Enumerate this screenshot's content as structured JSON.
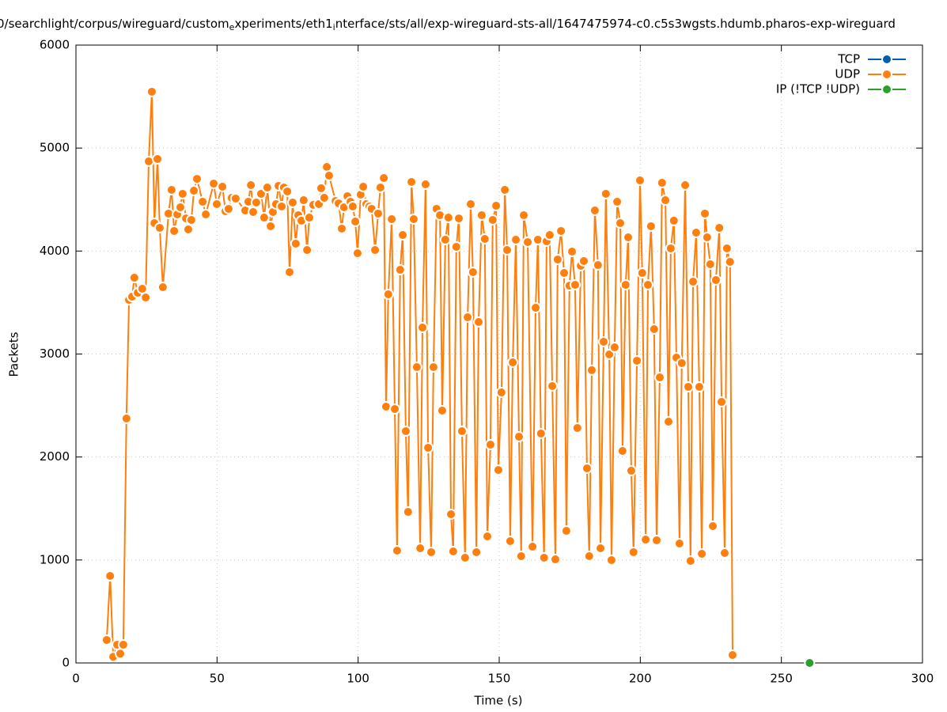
{
  "chart_data": {
    "type": "line",
    "title": [
      "0/searchlight/corpus/wireguard/custom",
      "e",
      "xperiments/eth1",
      "i",
      "nterface/sts/all/exp-wireguard-sts-all/1647475974-c0.c5s3wgsts.hdumb.pharos-exp-wireguard"
    ],
    "x_label": "Time (s)",
    "y_label": "Packets",
    "xlim": [
      0,
      300
    ],
    "xticks": [
      0,
      50,
      100,
      150,
      200,
      250,
      300
    ],
    "ylim": [
      0,
      6000
    ],
    "yticks": [
      0,
      1000,
      2000,
      3000,
      4000,
      5000,
      6000
    ],
    "grid": true,
    "legend": "top-right",
    "series": [
      {
        "name": "TCP",
        "color": "#0060ad",
        "x": [],
        "values": []
      },
      {
        "name": "UDP",
        "color": "#ff7f0e",
        "x": [
          10.9,
          12.1,
          13.2,
          14.6,
          15.7,
          16.8,
          17.9,
          18.8,
          19.9,
          20.7,
          21.9,
          23.5,
          24.7,
          25.8,
          26.9,
          27.8,
          28.9,
          29.7,
          30.8,
          32.8,
          33.9,
          34.8,
          35.9,
          37.0,
          37.8,
          39.0,
          39.8,
          40.9,
          41.8,
          42.9,
          44.9,
          46.0,
          48.8,
          49.9,
          51.9,
          53.0,
          54.1,
          55.2,
          56.6,
          60.0,
          61.1,
          62.0,
          62.8,
          63.9,
          65.6,
          66.7,
          67.8,
          69.0,
          69.8,
          70.9,
          71.8,
          72.9,
          73.7,
          74.9,
          75.7,
          76.8,
          77.9,
          78.8,
          79.9,
          80.7,
          81.9,
          82.7,
          84.1,
          86.1,
          86.9,
          88.0,
          88.9,
          89.7,
          92.0,
          93.1,
          94.2,
          95.0,
          96.2,
          97.3,
          98.1,
          99.0,
          99.8,
          100.9,
          101.8,
          102.9,
          104.0,
          104.8,
          106.0,
          107.1,
          107.9,
          109.1,
          109.9,
          110.7,
          111.9,
          113.0,
          113.8,
          114.9,
          115.8,
          116.9,
          117.7,
          118.9,
          119.7,
          120.8,
          122.0,
          122.8,
          123.9,
          124.8,
          125.9,
          126.7,
          127.8,
          129.0,
          129.8,
          130.9,
          132.0,
          132.9,
          133.7,
          134.8,
          135.7,
          136.8,
          137.9,
          138.8,
          139.9,
          140.7,
          141.9,
          142.7,
          143.8,
          144.9,
          145.8,
          146.9,
          147.7,
          148.9,
          149.7,
          150.8,
          152.0,
          152.8,
          153.9,
          154.8,
          155.9,
          157.0,
          157.8,
          158.7,
          160.1,
          161.8,
          162.9,
          163.7,
          164.8,
          165.9,
          166.8,
          167.9,
          168.8,
          169.9,
          170.7,
          171.9,
          173.0,
          173.8,
          174.9,
          175.8,
          176.9,
          177.7,
          178.9,
          180.0,
          181.1,
          181.9,
          182.8,
          183.9,
          185.0,
          185.9,
          187.0,
          187.8,
          189.0,
          189.8,
          190.9,
          191.8,
          192.9,
          193.7,
          194.8,
          195.7,
          196.8,
          197.6,
          198.8,
          199.9,
          200.7,
          201.9,
          202.7,
          203.8,
          204.9,
          205.8,
          206.9,
          207.7,
          208.9,
          210.0,
          210.8,
          211.9,
          212.8,
          213.9,
          214.7,
          215.9,
          217.0,
          217.8,
          218.7,
          219.8,
          220.9,
          221.8,
          222.9,
          223.7,
          224.8,
          225.7,
          226.8,
          228.0,
          228.8,
          229.9,
          230.7,
          231.8,
          232.7
        ],
        "values": [
          223,
          845,
          60,
          177,
          90,
          177,
          2374,
          3526,
          3557,
          3741,
          3595,
          3634,
          3549,
          4871,
          5547,
          4271,
          4894,
          4225,
          3649,
          4364,
          4594,
          4195,
          4356,
          4425,
          4556,
          4317,
          4210,
          4302,
          4586,
          4701,
          4479,
          4356,
          4655,
          4456,
          4625,
          4387,
          4410,
          4517,
          4510,
          4394,
          4479,
          4640,
          4379,
          4471,
          4556,
          4325,
          4617,
          4241,
          4379,
          4456,
          4633,
          4433,
          4617,
          4579,
          3795,
          4471,
          4072,
          4348,
          4295,
          4494,
          4010,
          4325,
          4448,
          4456,
          4610,
          4517,
          4817,
          4732,
          4487,
          4463,
          4218,
          4425,
          4533,
          4479,
          4433,
          4287,
          3979,
          4548,
          4625,
          4456,
          4433,
          4410,
          4010,
          4364,
          4617,
          4709,
          2489,
          3580,
          4310,
          2466,
          1091,
          3818,
          4156,
          2251,
          1467,
          4671,
          4310,
          2873,
          1114,
          3257,
          4648,
          2090,
          1076,
          2873,
          4410,
          4348,
          2451,
          4110,
          4325,
          1444,
          1083,
          4041,
          4317,
          2251,
          1022,
          3357,
          4456,
          3795,
          1076,
          3311,
          4348,
          4118,
          1229,
          2120,
          4302,
          4440,
          1874,
          2627,
          4594,
          4010,
          1183,
          2919,
          4110,
          2197,
          1037,
          4348,
          4087,
          1129,
          3449,
          4110,
          2228,
          1022,
          4095,
          4156,
          2689,
          1006,
          3918,
          4195,
          3787,
          1283,
          3664,
          3995,
          3672,
          2282,
          3857,
          3903,
          1890,
          1037,
          2843,
          4394,
          3864,
          1114,
          3119,
          4556,
          2996,
          999,
          3065,
          4479,
          4271,
          2059,
          3672,
          4133,
          1867,
          1076,
          2935,
          4686,
          3787,
          1198,
          3672,
          4241,
          3242,
          1191,
          2773,
          4663,
          4494,
          2343,
          4026,
          4295,
          2965,
          1160,
          2912,
          4640,
          2681,
          991,
          3703,
          4179,
          2681,
          1060,
          4364,
          4133,
          3872,
          1329,
          3718,
          4225,
          2535,
          1068,
          4026,
          3895,
          77
        ]
      },
      {
        "name": "IP (!TCP  !UDP)",
        "color": "#2ca02c",
        "x": [
          260
        ],
        "values": [
          0
        ]
      }
    ]
  }
}
